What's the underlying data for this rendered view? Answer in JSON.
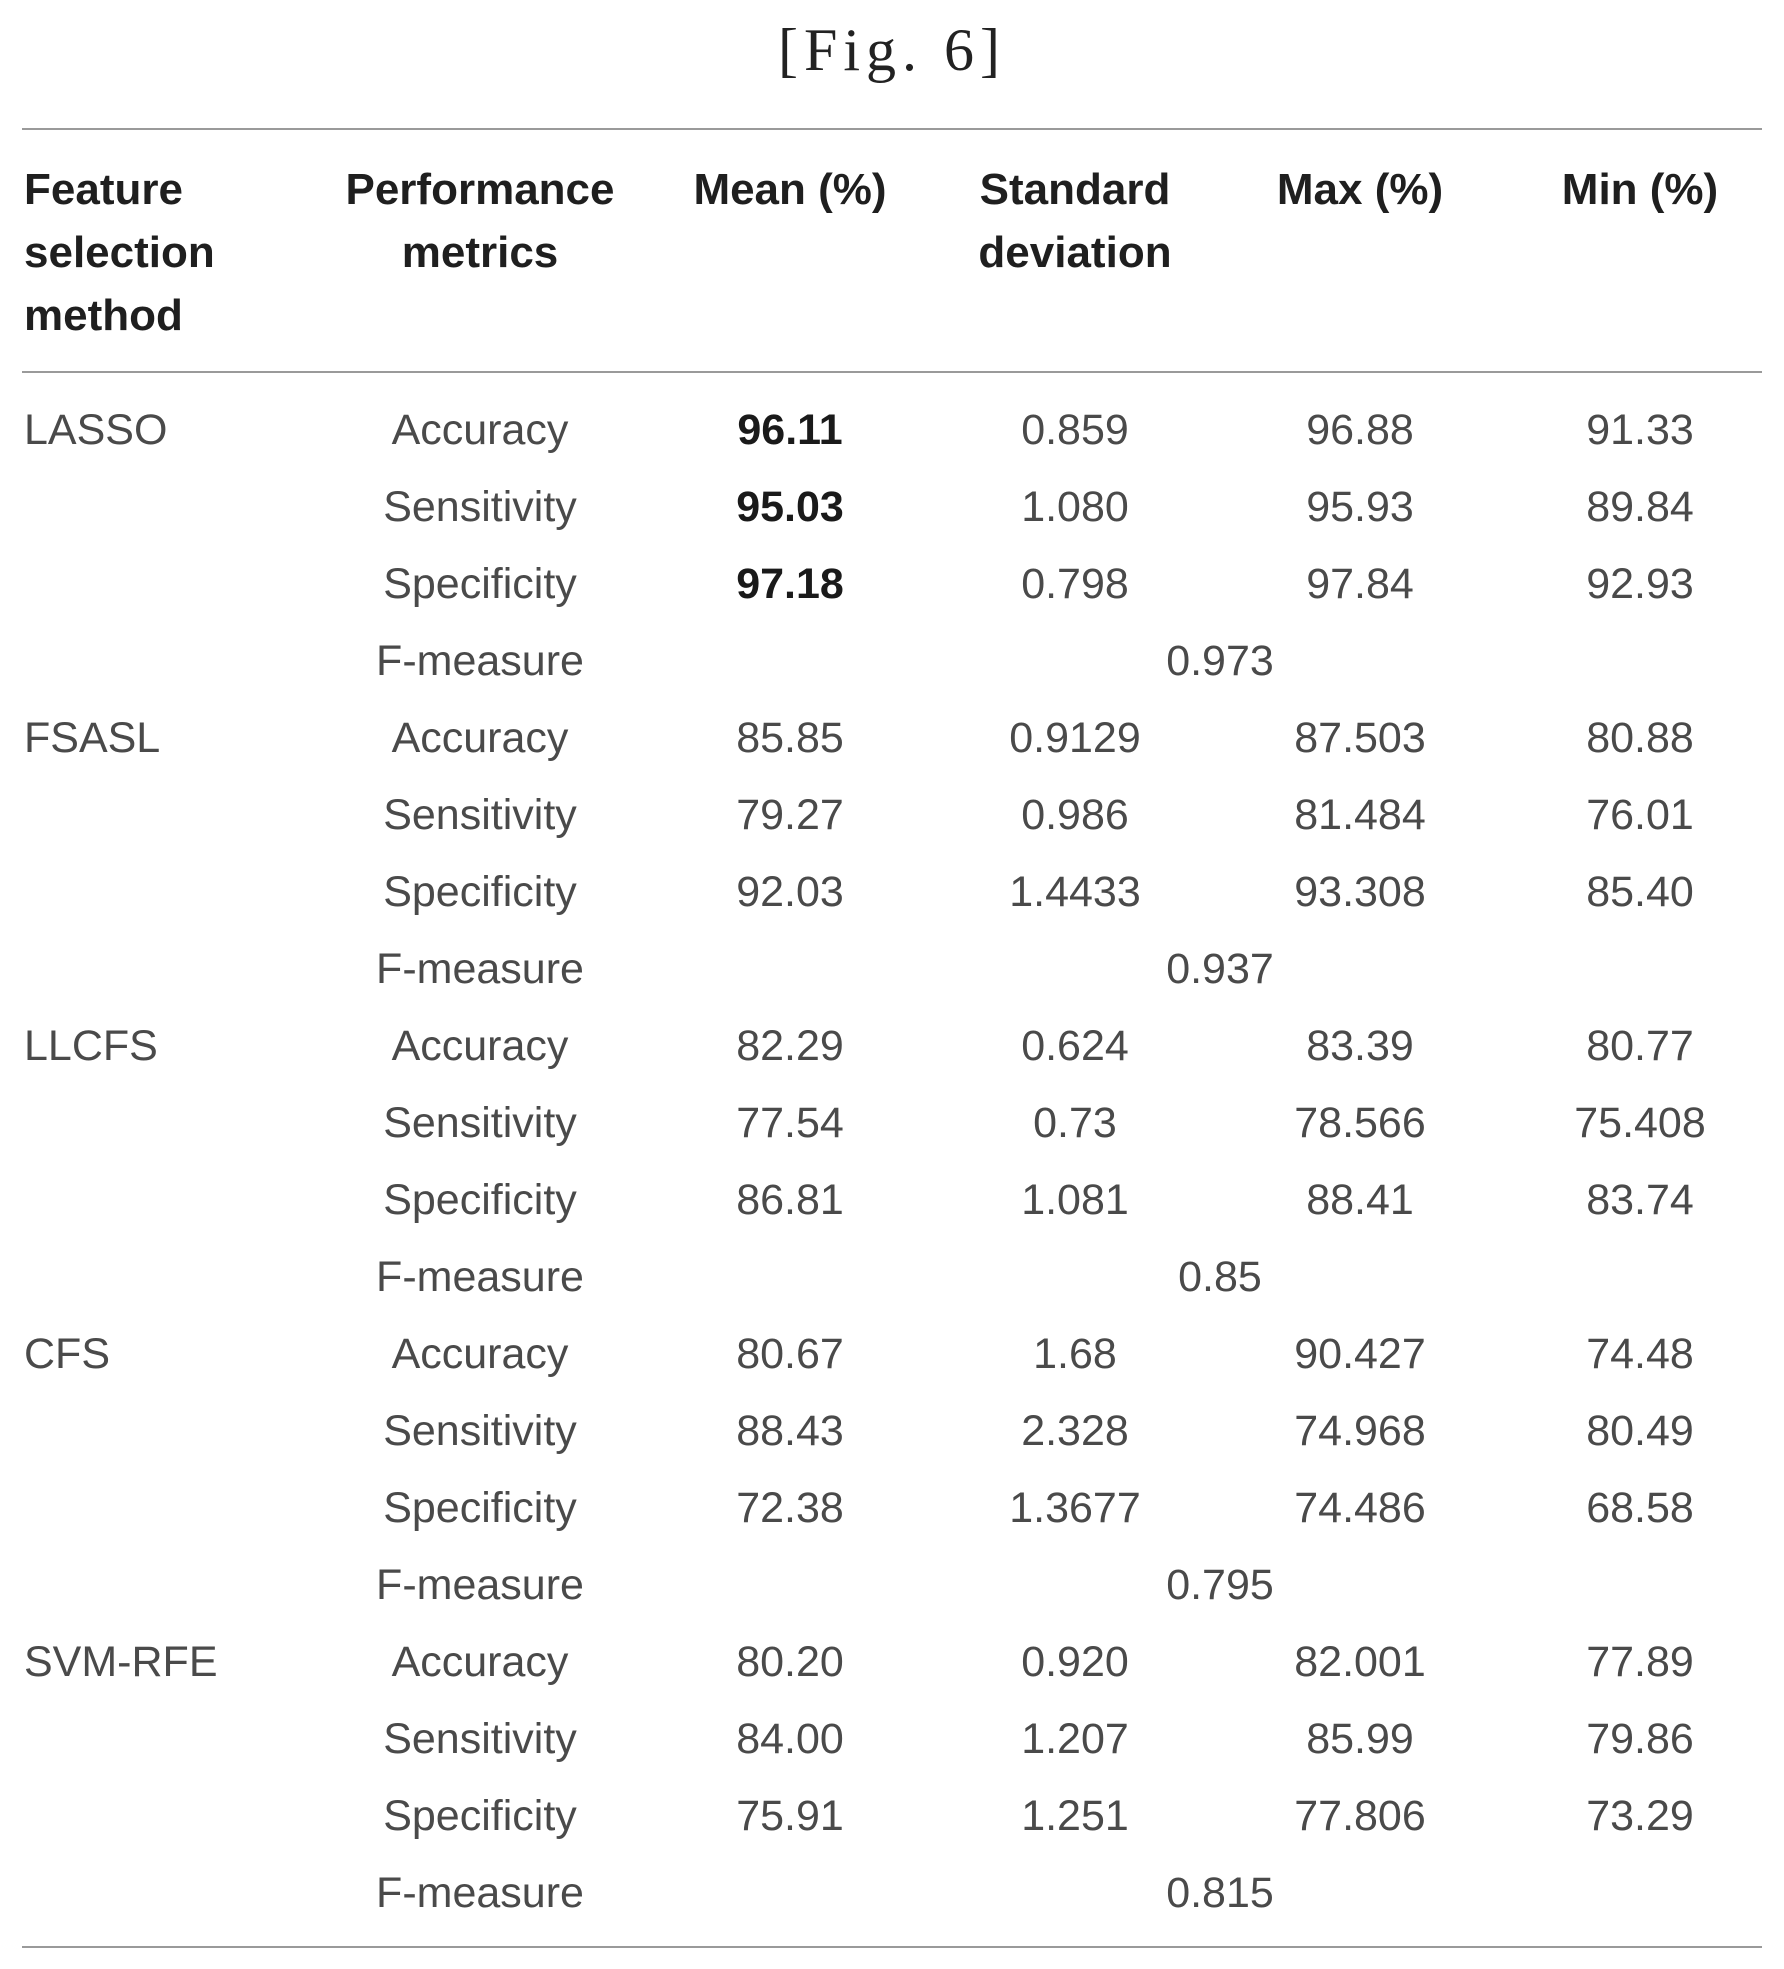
{
  "figure": {
    "title": "[Fig. 6]"
  },
  "table": {
    "headers": {
      "method": "Feature selection method",
      "metric": "Performance metrics",
      "mean": "Mean (%)",
      "sd": "Standard deviation",
      "max": "Max (%)",
      "min": "Min (%)"
    },
    "methods": [
      {
        "name": "LASSO",
        "rows": [
          {
            "metric": "Accuracy",
            "mean": "96.11",
            "sd": "0.859",
            "max": "96.88",
            "min": "91.33",
            "mean_bold": true
          },
          {
            "metric": "Sensitivity",
            "mean": "95.03",
            "sd": "1.080",
            "max": "95.93",
            "min": "89.84",
            "mean_bold": true
          },
          {
            "metric": "Specificity",
            "mean": "97.18",
            "sd": "0.798",
            "max": "97.84",
            "min": "92.93",
            "mean_bold": true
          }
        ],
        "f_measure_label": "F-measure",
        "f_measure": "0.973"
      },
      {
        "name": "FSASL",
        "rows": [
          {
            "metric": "Accuracy",
            "mean": "85.85",
            "sd": "0.9129",
            "max": "87.503",
            "min": "80.88"
          },
          {
            "metric": "Sensitivity",
            "mean": "79.27",
            "sd": "0.986",
            "max": "81.484",
            "min": "76.01"
          },
          {
            "metric": "Specificity",
            "mean": "92.03",
            "sd": "1.4433",
            "max": "93.308",
            "min": "85.40"
          }
        ],
        "f_measure_label": "F-measure",
        "f_measure": "0.937"
      },
      {
        "name": "LLCFS",
        "rows": [
          {
            "metric": "Accuracy",
            "mean": "82.29",
            "sd": "0.624",
            "max": "83.39",
            "min": "80.77"
          },
          {
            "metric": "Sensitivity",
            "mean": "77.54",
            "sd": "0.73",
            "max": "78.566",
            "min": "75.408"
          },
          {
            "metric": "Specificity",
            "mean": "86.81",
            "sd": "1.081",
            "max": "88.41",
            "min": "83.74"
          }
        ],
        "f_measure_label": "F-measure",
        "f_measure": "0.85"
      },
      {
        "name": "CFS",
        "rows": [
          {
            "metric": "Accuracy",
            "mean": "80.67",
            "sd": "1.68",
            "max": "90.427",
            "min": "74.48"
          },
          {
            "metric": "Sensitivity",
            "mean": "88.43",
            "sd": "2.328",
            "max": "74.968",
            "min": "80.49"
          },
          {
            "metric": "Specificity",
            "mean": "72.38",
            "sd": "1.3677",
            "max": "74.486",
            "min": "68.58"
          }
        ],
        "f_measure_label": "F-measure",
        "f_measure": "0.795"
      },
      {
        "name": "SVM-RFE",
        "rows": [
          {
            "metric": "Accuracy",
            "mean": "80.20",
            "sd": "0.920",
            "max": "82.001",
            "min": "77.89"
          },
          {
            "metric": "Sensitivity",
            "mean": "84.00",
            "sd": "1.207",
            "max": "85.99",
            "min": "79.86"
          },
          {
            "metric": "Specificity",
            "mean": "75.91",
            "sd": "1.251",
            "max": "77.806",
            "min": "73.29"
          }
        ],
        "f_measure_label": "F-measure",
        "f_measure": "0.815"
      }
    ]
  }
}
